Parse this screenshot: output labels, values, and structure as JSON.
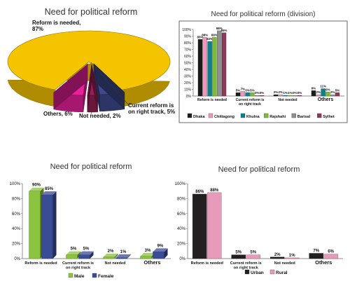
{
  "chart_data": [
    {
      "type": "pie",
      "title": "Need for political reform",
      "slices": [
        {
          "name": "Reform is needed",
          "value": 87,
          "label": "Reform is needed,\n87%",
          "color": "#f5c400"
        },
        {
          "name": "Current reform is on right track",
          "value": 5,
          "label": "Current reform is\non right track, 5%",
          "color": "#3e4a8e"
        },
        {
          "name": "Not needed",
          "value": 2,
          "label": "Not needed, 2%",
          "color": "#9a1d55"
        },
        {
          "name": "Others",
          "value": 6,
          "label": "Others, 6%",
          "color": "#e8209a"
        }
      ]
    },
    {
      "type": "bar",
      "title": "Need for political reform (division)",
      "categories": [
        "Reform is needed",
        "Current reform is\non right track",
        "Not needed",
        "Others"
      ],
      "ylim": [
        0,
        100
      ],
      "yticks": [
        0,
        10,
        20,
        30,
        40,
        50,
        60,
        70,
        80,
        90,
        100
      ],
      "legend": "bottom",
      "series": [
        {
          "name": "Dhaka",
          "color": "#1c1c1c",
          "values": [
            85,
            5,
            2,
            8
          ],
          "labels": [
            "85%",
            "5%",
            "2%",
            "8%"
          ]
        },
        {
          "name": "Chittagong",
          "color": "#e89ab8",
          "values": [
            88,
            7,
            2,
            2
          ],
          "labels": [
            "88%",
            "7%",
            "2%",
            "2%"
          ]
        },
        {
          "name": "Khulna",
          "color": "#0e7f8c",
          "values": [
            82,
            5,
            1,
            11
          ],
          "labels": [
            "82%",
            "5%",
            "1%",
            "11%"
          ]
        },
        {
          "name": "Rajshahi",
          "color": "#7fb83a",
          "values": [
            88,
            5,
            1,
            6
          ],
          "labels": [
            "88%",
            "5%",
            "1%",
            "6%"
          ]
        },
        {
          "name": "Barisal",
          "color": "#8f8f8f",
          "values": [
            98,
            0,
            0,
            2
          ],
          "labels": [
            "98%",
            "0%",
            "0%",
            "2%"
          ]
        },
        {
          "name": "Sylhet",
          "color": "#8b3a5a",
          "values": [
            95,
            0,
            0,
            5
          ],
          "labels": [
            "95%",
            "0%",
            "0%",
            "5%"
          ]
        }
      ]
    },
    {
      "type": "bar",
      "title": "Need for political reform",
      "categories": [
        "Reform is needed",
        "Current reform is\non right track",
        "Not needed",
        "Others"
      ],
      "ylim": [
        0,
        100
      ],
      "yticks": [
        0,
        20,
        40,
        60,
        80,
        100
      ],
      "legend": "bottom",
      "series": [
        {
          "name": "Male",
          "color": "#8cc33f",
          "values": [
            90,
            5,
            2,
            3
          ],
          "labels": [
            "90%",
            "5%",
            "2%",
            "3%"
          ]
        },
        {
          "name": "Female",
          "color": "#3b4c96",
          "values": [
            85,
            5,
            1,
            9
          ],
          "labels": [
            "85%",
            "5%",
            "1%",
            "9%"
          ]
        }
      ]
    },
    {
      "type": "bar",
      "title": "Need for political reform",
      "categories": [
        "Reform is needed",
        "Current reform is\non right track",
        "Not needed",
        "Others"
      ],
      "ylim": [
        0,
        100
      ],
      "yticks": [
        0,
        20,
        40,
        60,
        80,
        100
      ],
      "legend": "bottom",
      "series": [
        {
          "name": "Urban",
          "color": "#231f20",
          "values": [
            86,
            5,
            2,
            7
          ],
          "labels": [
            "86%",
            "5%",
            "2%",
            "7%"
          ]
        },
        {
          "name": "Rural",
          "color": "#e79ab9",
          "values": [
            88,
            5,
            1,
            6
          ],
          "labels": [
            "88%",
            "5%",
            "1%",
            "6%"
          ]
        }
      ]
    }
  ]
}
